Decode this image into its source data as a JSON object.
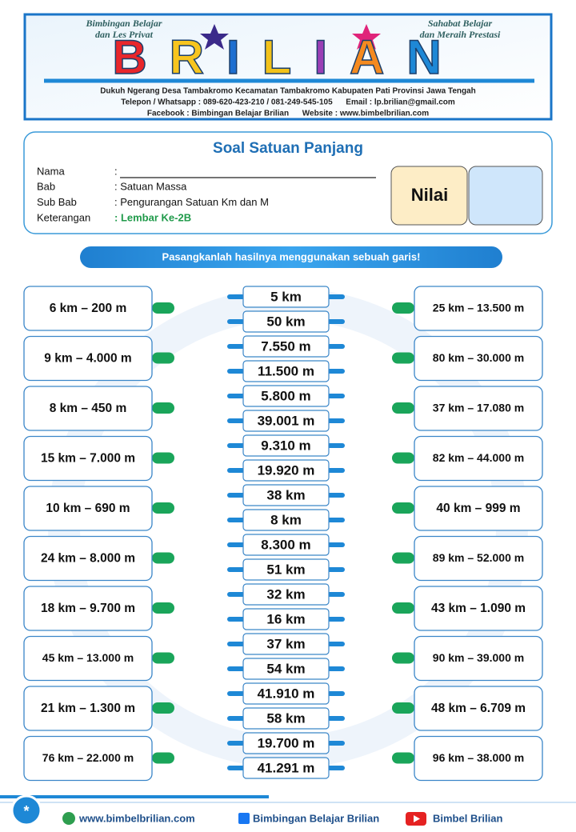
{
  "header": {
    "tagline_left": [
      "Bimbingan Belajar",
      "dan Les Privat"
    ],
    "tagline_right": [
      "Sahabat Belajar",
      "dan Meraih Prestasi"
    ],
    "logo": "BRILIAN",
    "address": "Dukuh Ngerang Desa Tambakromo Kecamatan Tambakromo Kabupaten Pati Provinsi Jawa Tengah",
    "contact": "Telepon / Whatsapp : 089-620-423-210 / 081-249-545-105      Email : lp.brilian@gmail.com",
    "social": "Facebook : Bimbingan Belajar Brilian      Website : www.bimbelbrilian.com"
  },
  "worksheet": {
    "title": "Soal Satuan Panjang",
    "fields": [
      {
        "label": "Nama",
        "value": ":"
      },
      {
        "label": "Bab",
        "value": ": Satuan Massa"
      },
      {
        "label": "Sub Bab",
        "value": ": Pengurangan Satuan Km dan M"
      },
      {
        "label": "Keterangan",
        "value": ": Lembar Ke-2B"
      }
    ],
    "score_label": "Nilai"
  },
  "instruction": "Pasangkanlah hasilnya menggunakan sebuah garis!",
  "left": [
    "6 km – 200 m",
    "9 km – 4.000 m",
    "8 km – 450 m",
    "15 km – 7.000 m",
    "10 km – 690 m",
    "24 km – 8.000 m",
    "18 km – 9.700 m",
    "45 km – 13.000 m",
    "21 km – 1.300 m",
    "76 km – 22.000 m"
  ],
  "middle": [
    "5 km",
    "50 km",
    "7.550 m",
    "11.500 m",
    "5.800 m",
    "39.001 m",
    "9.310 m",
    "19.920 m",
    "38 km",
    "8 km",
    "8.300 m",
    "51 km",
    "32 km",
    "16 km",
    "37 km",
    "54 km",
    "41.910 m",
    "58 km",
    "19.700 m",
    "41.291 m"
  ],
  "right": [
    "25 km – 13.500 m",
    "80 km – 30.000 m",
    "37 km – 17.080 m",
    "82 km – 44.000 m",
    "40 km – 999 m",
    "89 km – 52.000 m",
    "43 km – 1.090 m",
    "90 km – 39.000 m",
    "48 km – 6.709 m",
    "96 km – 38.000 m"
  ],
  "footer": {
    "badge": "*",
    "website": "www.bimbelbrilian.com",
    "facebook": "Bimbingan Belajar Brilian",
    "youtube": "Bimbel Brilian"
  }
}
